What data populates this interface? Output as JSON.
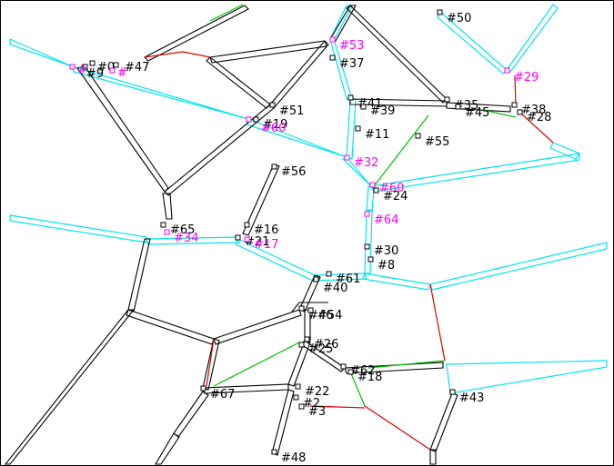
{
  "colors": {
    "background": "#ffffff",
    "edge_default": "#000000",
    "edge_highlight": "#00e5ee",
    "edge_red": "#e00000",
    "edge_green": "#00c000",
    "label_default": "#000000",
    "label_highlight": "#ff00ff"
  },
  "nodes": [
    {
      "id": "0",
      "label": "#0",
      "highlight": false
    },
    {
      "id": "9",
      "label": "#9",
      "highlight": false
    },
    {
      "id": "47",
      "label": "#47",
      "highlight": false
    },
    {
      "id": "c1",
      "label": "#",
      "highlight": true
    },
    {
      "id": "c2",
      "label": "#",
      "highlight": true
    },
    {
      "id": "53",
      "label": "#53",
      "highlight": true
    },
    {
      "id": "37",
      "label": "#37",
      "highlight": false
    },
    {
      "id": "50",
      "label": "#50",
      "highlight": false
    },
    {
      "id": "29",
      "label": "#29",
      "highlight": true
    },
    {
      "id": "51",
      "label": "#51",
      "highlight": false
    },
    {
      "id": "19",
      "label": "#19",
      "highlight": false
    },
    {
      "id": "60",
      "label": "#60",
      "highlight": true
    },
    {
      "id": "41",
      "label": "#41",
      "highlight": false
    },
    {
      "id": "39",
      "label": "#39",
      "highlight": false
    },
    {
      "id": "35",
      "label": "#35",
      "highlight": false
    },
    {
      "id": "45",
      "label": "#45",
      "highlight": false
    },
    {
      "id": "38",
      "label": "#38",
      "highlight": false
    },
    {
      "id": "28",
      "label": "#28",
      "highlight": false
    },
    {
      "id": "11",
      "label": "#11",
      "highlight": false
    },
    {
      "id": "55",
      "label": "#55",
      "highlight": false
    },
    {
      "id": "32",
      "label": "#32",
      "highlight": true
    },
    {
      "id": "56",
      "label": "#56",
      "highlight": false
    },
    {
      "id": "c3",
      "label": "#60",
      "highlight": true
    },
    {
      "id": "24",
      "label": "#24",
      "highlight": false
    },
    {
      "id": "64",
      "label": "#64",
      "highlight": true
    },
    {
      "id": "65",
      "label": "#65",
      "highlight": false
    },
    {
      "id": "34",
      "label": "#34",
      "highlight": true
    },
    {
      "id": "16",
      "label": "#16",
      "highlight": false
    },
    {
      "id": "21",
      "label": "#21",
      "highlight": false
    },
    {
      "id": "17",
      "label": "#17",
      "highlight": true
    },
    {
      "id": "30",
      "label": "#30",
      "highlight": false
    },
    {
      "id": "8",
      "label": "#8",
      "highlight": false
    },
    {
      "id": "61",
      "label": "#61",
      "highlight": false
    },
    {
      "id": "40",
      "label": "#40",
      "highlight": false
    },
    {
      "id": "46",
      "label": "#46",
      "highlight": false
    },
    {
      "id": "54",
      "label": "#54",
      "highlight": false
    },
    {
      "id": "26",
      "label": "#26",
      "highlight": false
    },
    {
      "id": "25",
      "label": "#25",
      "highlight": false
    },
    {
      "id": "62",
      "label": "#62",
      "highlight": false
    },
    {
      "id": "18",
      "label": "#18",
      "highlight": false
    },
    {
      "id": "43",
      "label": "#43",
      "highlight": false
    },
    {
      "id": "67",
      "label": "#67",
      "highlight": false
    },
    {
      "id": "22",
      "label": "#22",
      "highlight": false
    },
    {
      "id": "2",
      "label": "#2",
      "highlight": false
    },
    {
      "id": "3",
      "label": "#3",
      "highlight": false
    },
    {
      "id": "48",
      "label": "#48",
      "highlight": false
    }
  ]
}
